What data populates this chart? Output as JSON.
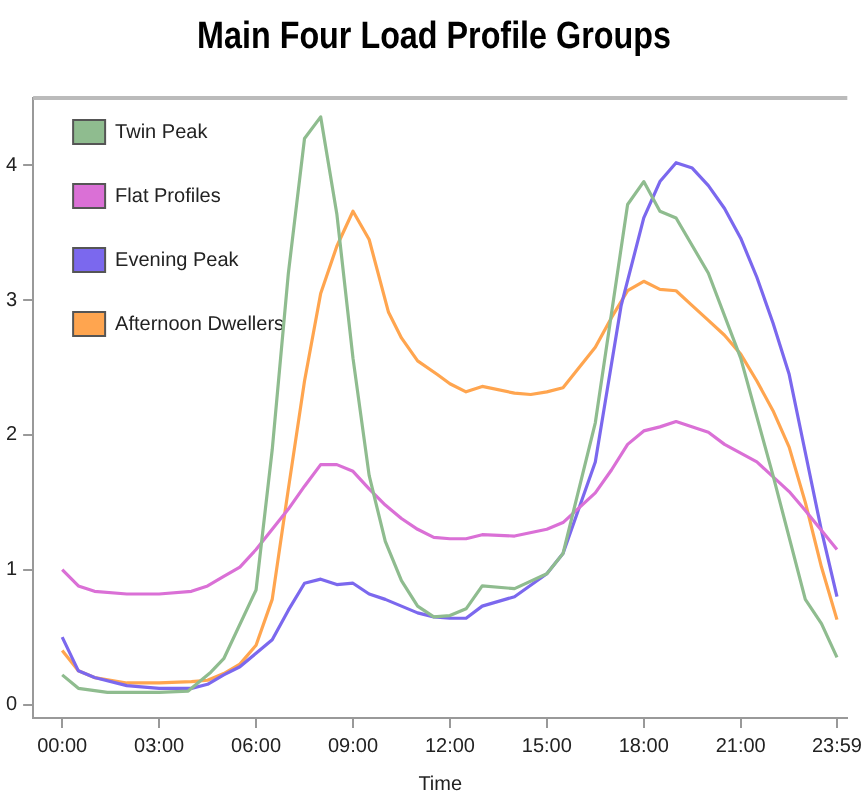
{
  "chart_data": {
    "type": "line",
    "title": "Main Four Load Profile Groups",
    "xlabel": "Time",
    "xlim": [
      -0.9,
      24.3
    ],
    "ylim": [
      -0.1,
      4.5
    ],
    "xticks": [
      {
        "value": 0,
        "label": "00:00"
      },
      {
        "value": 3,
        "label": "03:00"
      },
      {
        "value": 6,
        "label": "06:00"
      },
      {
        "value": 9,
        "label": "09:00"
      },
      {
        "value": 12,
        "label": "12:00"
      },
      {
        "value": 15,
        "label": "15:00"
      },
      {
        "value": 18,
        "label": "18:00"
      },
      {
        "value": 21,
        "label": "21:00"
      },
      {
        "value": 23.98,
        "label": "23:59"
      }
    ],
    "yticks": [
      0,
      1,
      2,
      3,
      4
    ],
    "grid": false,
    "legend": "top left",
    "marker": "none",
    "line_style": "solid",
    "series": [
      {
        "name": "Twin Peak",
        "color": "#8fbc8f",
        "x": [
          0,
          0.5,
          1.4,
          2,
          3,
          3.9,
          4.6,
          5,
          6,
          6.5,
          7,
          7.5,
          8,
          8.5,
          9,
          9.5,
          10,
          10.5,
          11,
          11.5,
          12,
          12.5,
          13,
          14,
          15,
          15.5,
          16.5,
          17.5,
          18,
          18.5,
          19,
          20,
          21,
          22,
          23,
          23.5,
          23.98
        ],
        "values": [
          0.22,
          0.12,
          0.09,
          0.09,
          0.09,
          0.1,
          0.24,
          0.34,
          0.85,
          1.89,
          3.2,
          4.2,
          4.36,
          3.64,
          2.57,
          1.7,
          1.21,
          0.92,
          0.73,
          0.65,
          0.66,
          0.71,
          0.88,
          0.86,
          0.97,
          1.12,
          2.09,
          3.71,
          3.88,
          3.66,
          3.61,
          3.2,
          2.57,
          1.7,
          0.78,
          0.6,
          0.35
        ]
      },
      {
        "name": "Flat Profiles",
        "color": "#da70d6",
        "x": [
          0,
          0.5,
          1,
          2,
          3,
          4,
          4.5,
          5,
          5.5,
          6,
          6.5,
          7,
          7.5,
          8,
          8.5,
          9,
          9.5,
          10,
          10.5,
          11,
          11.5,
          12,
          12.5,
          13,
          14,
          15,
          15.5,
          16.5,
          17,
          17.5,
          18,
          18.5,
          19,
          20,
          20.5,
          21.5,
          22.5,
          23,
          23.98
        ],
        "values": [
          1.0,
          0.88,
          0.84,
          0.82,
          0.82,
          0.84,
          0.88,
          0.95,
          1.02,
          1.15,
          1.3,
          1.45,
          1.62,
          1.78,
          1.78,
          1.73,
          1.6,
          1.48,
          1.38,
          1.3,
          1.24,
          1.23,
          1.23,
          1.26,
          1.25,
          1.3,
          1.35,
          1.57,
          1.74,
          1.93,
          2.03,
          2.06,
          2.1,
          2.02,
          1.93,
          1.8,
          1.58,
          1.44,
          1.15
        ]
      },
      {
        "name": "Evening Peak",
        "color": "#7b68ee",
        "x": [
          0,
          0.5,
          1,
          2,
          3,
          4,
          4.5,
          5,
          5.5,
          6,
          6.5,
          7,
          7.5,
          8,
          8.5,
          9,
          9.5,
          10,
          10.5,
          11,
          11.5,
          12,
          12.5,
          13,
          14,
          15,
          15.5,
          16,
          16.5,
          17.3,
          18,
          18.5,
          19,
          19.5,
          20,
          20.5,
          21,
          21.5,
          22,
          22.5,
          23,
          23.5,
          23.98
        ],
        "values": [
          0.5,
          0.25,
          0.2,
          0.14,
          0.12,
          0.12,
          0.15,
          0.22,
          0.28,
          0.38,
          0.48,
          0.7,
          0.9,
          0.93,
          0.89,
          0.9,
          0.82,
          0.78,
          0.73,
          0.68,
          0.65,
          0.64,
          0.64,
          0.73,
          0.8,
          0.97,
          1.12,
          1.46,
          1.8,
          2.96,
          3.61,
          3.88,
          4.02,
          3.98,
          3.85,
          3.68,
          3.46,
          3.17,
          2.83,
          2.45,
          1.87,
          1.29,
          0.8
        ]
      },
      {
        "name": "Afternoon Dwellers",
        "color": "#ffa54f",
        "x": [
          0,
          0.5,
          1,
          2,
          3,
          4,
          4.5,
          5,
          5.5,
          6,
          6.5,
          7,
          7.5,
          8,
          8.5,
          9,
          9.5,
          10.1,
          10.5,
          11,
          11.6,
          12,
          12.5,
          13,
          14,
          14.5,
          15,
          15.5,
          16,
          16.5,
          17,
          17.5,
          18,
          18.5,
          19,
          19.5,
          20,
          20.5,
          21,
          21.5,
          22,
          22.5,
          23,
          23.5,
          23.98
        ],
        "values": [
          0.4,
          0.25,
          0.2,
          0.16,
          0.16,
          0.17,
          0.18,
          0.23,
          0.3,
          0.44,
          0.78,
          1.6,
          2.4,
          3.05,
          3.4,
          3.66,
          3.45,
          2.91,
          2.72,
          2.55,
          2.45,
          2.38,
          2.32,
          2.36,
          2.31,
          2.3,
          2.32,
          2.35,
          2.5,
          2.65,
          2.87,
          3.07,
          3.14,
          3.08,
          3.07,
          2.96,
          2.85,
          2.74,
          2.6,
          2.4,
          2.18,
          1.91,
          1.5,
          1.02,
          0.63
        ]
      }
    ]
  }
}
